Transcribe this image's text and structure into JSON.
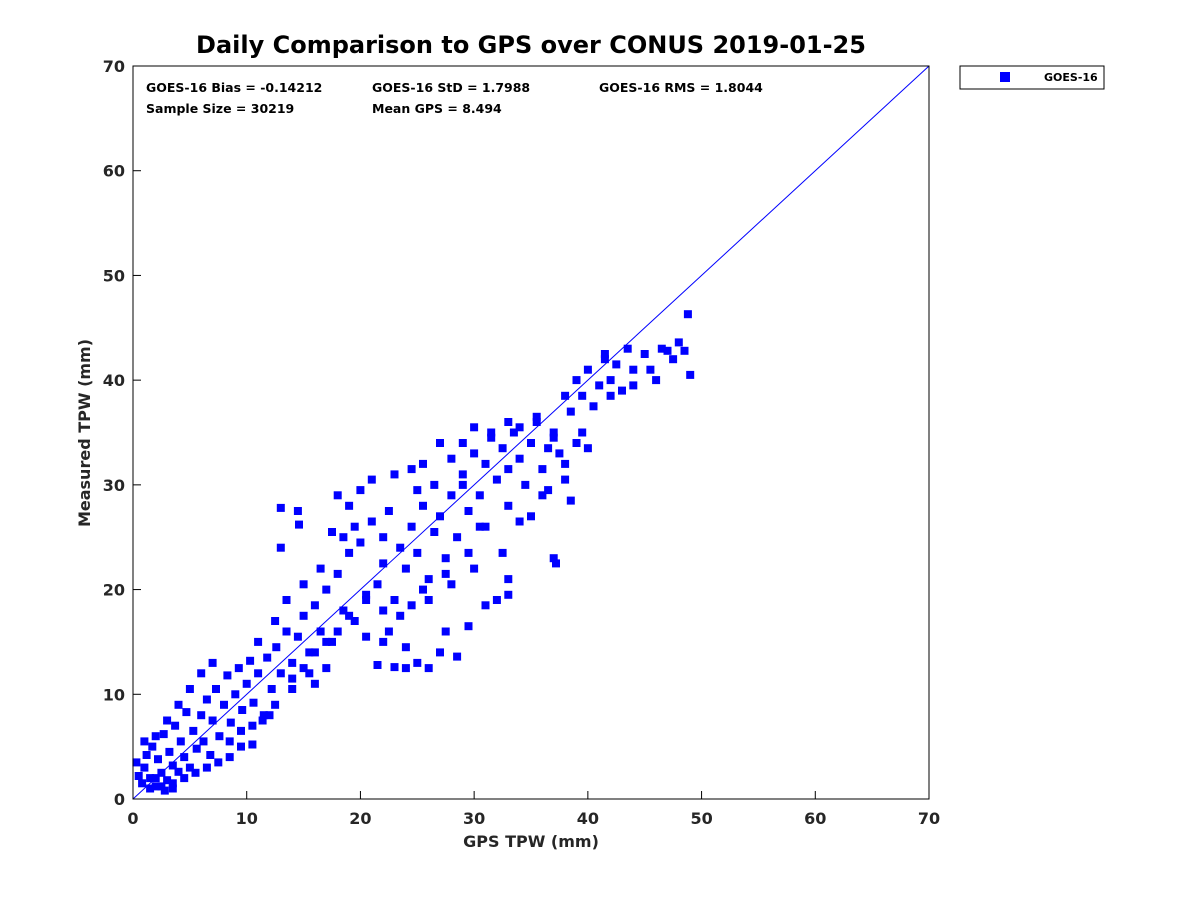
{
  "chart_data": {
    "type": "scatter",
    "title": "Daily Comparison to GPS over CONUS 2019-01-25",
    "xlabel": "GPS TPW (mm)",
    "ylabel": "Measured TPW (mm)",
    "xlim": [
      0,
      70
    ],
    "ylim": [
      0,
      70
    ],
    "xticks": [
      0,
      10,
      20,
      30,
      40,
      50,
      60,
      70
    ],
    "yticks": [
      0,
      10,
      20,
      30,
      40,
      50,
      60,
      70
    ],
    "grid": false,
    "legend_position": "top-right, outside plot",
    "legend": [
      "GOES-16"
    ],
    "reference_line": {
      "name": "one-to-one line",
      "x": [
        0,
        70
      ],
      "y": [
        0,
        70
      ],
      "color": "#0000ff"
    },
    "annotations": [
      "GOES-16 Bias = -0.14212",
      "GOES-16 StD = 1.7988",
      "GOES-16 RMS = 1.8044",
      "Sample Size = 30219",
      "Mean GPS = 8.494"
    ],
    "series": [
      {
        "name": "GOES-16",
        "color": "#0000ff",
        "marker": "square",
        "points": [
          [
            0.3,
            3.5
          ],
          [
            0.5,
            2.2
          ],
          [
            0.8,
            1.5
          ],
          [
            1.0,
            3.0
          ],
          [
            1.2,
            4.2
          ],
          [
            1.5,
            2.0
          ],
          [
            1.7,
            5.0
          ],
          [
            2.0,
            1.2
          ],
          [
            2.2,
            3.8
          ],
          [
            2.5,
            2.5
          ],
          [
            2.7,
            6.2
          ],
          [
            3.0,
            1.8
          ],
          [
            3.2,
            4.5
          ],
          [
            3.5,
            3.2
          ],
          [
            3.7,
            7.0
          ],
          [
            4.0,
            2.6
          ],
          [
            4.2,
            5.5
          ],
          [
            4.5,
            4.0
          ],
          [
            4.7,
            8.3
          ],
          [
            5.0,
            3.0
          ],
          [
            5.3,
            6.5
          ],
          [
            5.6,
            4.8
          ],
          [
            6.0,
            8.0
          ],
          [
            6.2,
            5.5
          ],
          [
            6.5,
            9.5
          ],
          [
            6.8,
            4.2
          ],
          [
            7.0,
            7.5
          ],
          [
            7.3,
            10.5
          ],
          [
            7.6,
            6.0
          ],
          [
            8.0,
            9.0
          ],
          [
            8.3,
            11.8
          ],
          [
            8.6,
            7.3
          ],
          [
            9.0,
            10.0
          ],
          [
            9.3,
            12.5
          ],
          [
            9.6,
            8.5
          ],
          [
            10.0,
            11.0
          ],
          [
            10.3,
            13.2
          ],
          [
            10.6,
            9.2
          ],
          [
            11.0,
            12.0
          ],
          [
            11.4,
            7.5
          ],
          [
            11.8,
            13.5
          ],
          [
            12.2,
            10.5
          ],
          [
            12.6,
            14.5
          ],
          [
            13.0,
            12.0
          ],
          [
            13.5,
            16.0
          ],
          [
            14.0,
            13.0
          ],
          [
            14.5,
            15.5
          ],
          [
            15.0,
            17.5
          ],
          [
            15.5,
            14.0
          ],
          [
            16.0,
            18.5
          ],
          [
            16.5,
            16.0
          ],
          [
            17.0,
            20.0
          ],
          [
            17.5,
            15.0
          ],
          [
            18.0,
            21.5
          ],
          [
            18.5,
            18.0
          ],
          [
            19.0,
            23.5
          ],
          [
            19.5,
            17.0
          ],
          [
            20.0,
            24.5
          ],
          [
            20.5,
            19.5
          ],
          [
            21.0,
            26.5
          ],
          [
            21.5,
            20.5
          ],
          [
            22.0,
            22.5
          ],
          [
            22.5,
            27.5
          ],
          [
            23.0,
            19.0
          ],
          [
            23.5,
            24.0
          ],
          [
            24.0,
            22.0
          ],
          [
            24.5,
            26.0
          ],
          [
            25.0,
            23.5
          ],
          [
            25.5,
            28.0
          ],
          [
            26.0,
            21.0
          ],
          [
            26.5,
            25.5
          ],
          [
            27.0,
            27.0
          ],
          [
            27.5,
            23.0
          ],
          [
            28.0,
            29.0
          ],
          [
            28.5,
            25.0
          ],
          [
            29.0,
            31.0
          ],
          [
            29.5,
            27.5
          ],
          [
            30.0,
            33.0
          ],
          [
            30.5,
            29.0
          ],
          [
            31.0,
            32.0
          ],
          [
            31.5,
            34.5
          ],
          [
            32.0,
            30.5
          ],
          [
            32.5,
            33.5
          ],
          [
            33.0,
            31.5
          ],
          [
            33.5,
            35.0
          ],
          [
            34.0,
            32.5
          ],
          [
            34.5,
            30.0
          ],
          [
            35.0,
            34.0
          ],
          [
            35.5,
            36.0
          ],
          [
            36.0,
            31.5
          ],
          [
            36.5,
            33.5
          ],
          [
            37.0,
            35.0
          ],
          [
            37.5,
            33.0
          ],
          [
            38.0,
            38.5
          ],
          [
            38.5,
            37.0
          ],
          [
            39.0,
            40.0
          ],
          [
            39.5,
            38.5
          ],
          [
            40.0,
            41.0
          ],
          [
            40.5,
            37.5
          ],
          [
            41.0,
            39.5
          ],
          [
            41.5,
            42.0
          ],
          [
            42.0,
            40.0
          ],
          [
            42.5,
            41.5
          ],
          [
            43.0,
            39.0
          ],
          [
            43.5,
            43.0
          ],
          [
            44.0,
            41.0
          ],
          [
            45.0,
            42.5
          ],
          [
            46.0,
            40.0
          ],
          [
            47.0,
            42.8
          ],
          [
            48.0,
            43.6
          ],
          [
            48.8,
            46.3
          ],
          [
            49.0,
            40.5
          ],
          [
            48.5,
            42.8
          ],
          [
            13.0,
            27.8
          ],
          [
            14.5,
            27.5
          ],
          [
            14.6,
            26.2
          ],
          [
            13.0,
            24.0
          ],
          [
            14.0,
            11.5
          ],
          [
            16.0,
            11.0
          ],
          [
            17.0,
            12.5
          ],
          [
            15.5,
            12.0
          ],
          [
            18.0,
            29.0
          ],
          [
            19.0,
            28.0
          ],
          [
            18.5,
            25.0
          ],
          [
            20.5,
            15.5
          ],
          [
            21.5,
            12.8
          ],
          [
            22.0,
            15.0
          ],
          [
            23.0,
            12.6
          ],
          [
            24.0,
            12.5
          ],
          [
            25.0,
            13.0
          ],
          [
            26.0,
            12.5
          ],
          [
            27.0,
            14.0
          ],
          [
            28.5,
            13.6
          ],
          [
            29.5,
            16.5
          ],
          [
            31.0,
            18.5
          ],
          [
            32.0,
            19.0
          ],
          [
            33.0,
            19.5
          ],
          [
            24.5,
            31.5
          ],
          [
            25.5,
            32.0
          ],
          [
            27.0,
            34.0
          ],
          [
            29.0,
            30.0
          ],
          [
            30.5,
            26.0
          ],
          [
            32.5,
            23.5
          ],
          [
            37.0,
            23.0
          ],
          [
            37.2,
            22.5
          ],
          [
            38.5,
            28.5
          ],
          [
            36.0,
            29.0
          ],
          [
            40.0,
            33.5
          ],
          [
            39.5,
            35.0
          ],
          [
            41.5,
            42.5
          ],
          [
            33.0,
            21.0
          ],
          [
            30.0,
            22.0
          ],
          [
            28.0,
            20.5
          ],
          [
            26.0,
            19.0
          ],
          [
            23.5,
            17.5
          ],
          [
            22.5,
            16.0
          ],
          [
            24.0,
            14.5
          ],
          [
            27.5,
            16.0
          ],
          [
            1.5,
            1.0
          ],
          [
            2.5,
            1.2
          ],
          [
            3.5,
            1.5
          ],
          [
            1.0,
            5.5
          ],
          [
            2.0,
            6.0
          ],
          [
            3.0,
            7.5
          ],
          [
            4.0,
            9.0
          ],
          [
            5.0,
            10.5
          ],
          [
            6.0,
            12.0
          ],
          [
            7.0,
            13.0
          ],
          [
            8.5,
            5.5
          ],
          [
            9.5,
            6.5
          ],
          [
            10.5,
            5.2
          ],
          [
            12.0,
            8.0
          ],
          [
            11.0,
            15.0
          ],
          [
            12.5,
            17.0
          ],
          [
            13.5,
            19.0
          ],
          [
            15.0,
            20.5
          ],
          [
            16.5,
            22.0
          ],
          [
            17.5,
            25.5
          ],
          [
            19.5,
            26.0
          ],
          [
            20.0,
            29.5
          ],
          [
            21.0,
            30.5
          ],
          [
            22.0,
            25.0
          ],
          [
            23.0,
            31.0
          ],
          [
            25.0,
            29.5
          ],
          [
            26.5,
            30.0
          ],
          [
            28.0,
            32.5
          ],
          [
            29.0,
            34.0
          ],
          [
            30.0,
            35.5
          ],
          [
            31.5,
            35.0
          ],
          [
            33.0,
            36.0
          ],
          [
            34.0,
            35.5
          ],
          [
            35.5,
            36.5
          ],
          [
            37.0,
            34.5
          ],
          [
            38.0,
            32.0
          ],
          [
            39.0,
            34.0
          ],
          [
            42.0,
            38.5
          ],
          [
            44.0,
            39.5
          ],
          [
            45.5,
            41.0
          ],
          [
            46.5,
            43.0
          ],
          [
            47.5,
            42.0
          ],
          [
            35.0,
            27.0
          ],
          [
            34.0,
            26.5
          ],
          [
            36.5,
            29.5
          ],
          [
            38.0,
            30.5
          ],
          [
            33.0,
            28.0
          ],
          [
            31.0,
            26.0
          ],
          [
            29.5,
            23.5
          ],
          [
            27.5,
            21.5
          ],
          [
            25.5,
            20.0
          ],
          [
            24.5,
            18.5
          ],
          [
            22.0,
            18.0
          ],
          [
            20.5,
            19.0
          ],
          [
            19.0,
            17.5
          ],
          [
            18.0,
            16.0
          ],
          [
            17.0,
            15.0
          ],
          [
            16.0,
            14.0
          ],
          [
            15.0,
            12.5
          ],
          [
            14.0,
            10.5
          ],
          [
            12.5,
            9.0
          ],
          [
            11.5,
            8.0
          ],
          [
            10.5,
            7.0
          ],
          [
            9.5,
            5.0
          ],
          [
            8.5,
            4.0
          ],
          [
            7.5,
            3.5
          ],
          [
            6.5,
            3.0
          ],
          [
            5.5,
            2.5
          ],
          [
            4.5,
            2.0
          ],
          [
            3.5,
            1.0
          ],
          [
            2.8,
            0.8
          ],
          [
            2.0,
            2.0
          ]
        ]
      }
    ]
  }
}
